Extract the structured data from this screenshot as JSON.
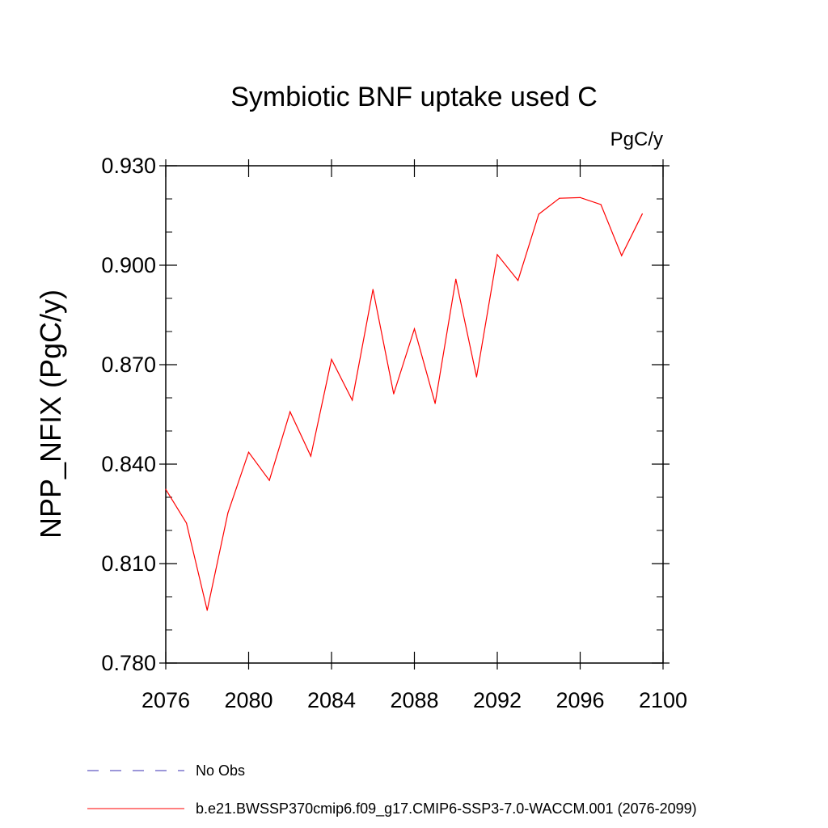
{
  "chart_data": {
    "type": "line",
    "title": "Symbiotic BNF uptake used C",
    "units": "PgC/y",
    "ylabel": "NPP_NFIX  (PgC/y)",
    "xlabel": "",
    "xlim": [
      2076,
      2100
    ],
    "ylim": [
      0.78,
      0.93
    ],
    "x_ticks": [
      "2076",
      "2080",
      "2084",
      "2088",
      "2092",
      "2096",
      "2100"
    ],
    "y_ticks": [
      "0.780",
      "0.810",
      "0.840",
      "0.870",
      "0.900",
      "0.930"
    ],
    "x": [
      2076,
      2077,
      2078,
      2079,
      2080,
      2081,
      2082,
      2083,
      2084,
      2085,
      2086,
      2087,
      2088,
      2089,
      2090,
      2091,
      2092,
      2093,
      2094,
      2095,
      2096,
      2097,
      2098,
      2099
    ],
    "series": [
      {
        "name": "b.e21.BWSSP370cmip6.f09_g17.CMIP6-SSP3-7.0-WACCM.001 (2076-2099)",
        "color": "#ff0000",
        "values": [
          0.8324,
          0.8222,
          0.7959,
          0.8253,
          0.8436,
          0.8351,
          0.8558,
          0.8424,
          0.8716,
          0.8593,
          0.8927,
          0.8612,
          0.8808,
          0.8583,
          0.8958,
          0.8663,
          0.9032,
          0.8954,
          0.9154,
          0.9202,
          0.9204,
          0.9183,
          0.9029,
          0.9155
        ]
      }
    ],
    "legend": [
      {
        "label": "No Obs",
        "color": "#3a2fb3",
        "style": "dashed"
      },
      {
        "label": "b.e21.BWSSP370cmip6.f09_g17.CMIP6-SSP3-7.0-WACCM.001 (2076-2099)",
        "color": "#ff0000",
        "style": "solid"
      }
    ],
    "legend_placement": "bottom",
    "grid": false
  }
}
